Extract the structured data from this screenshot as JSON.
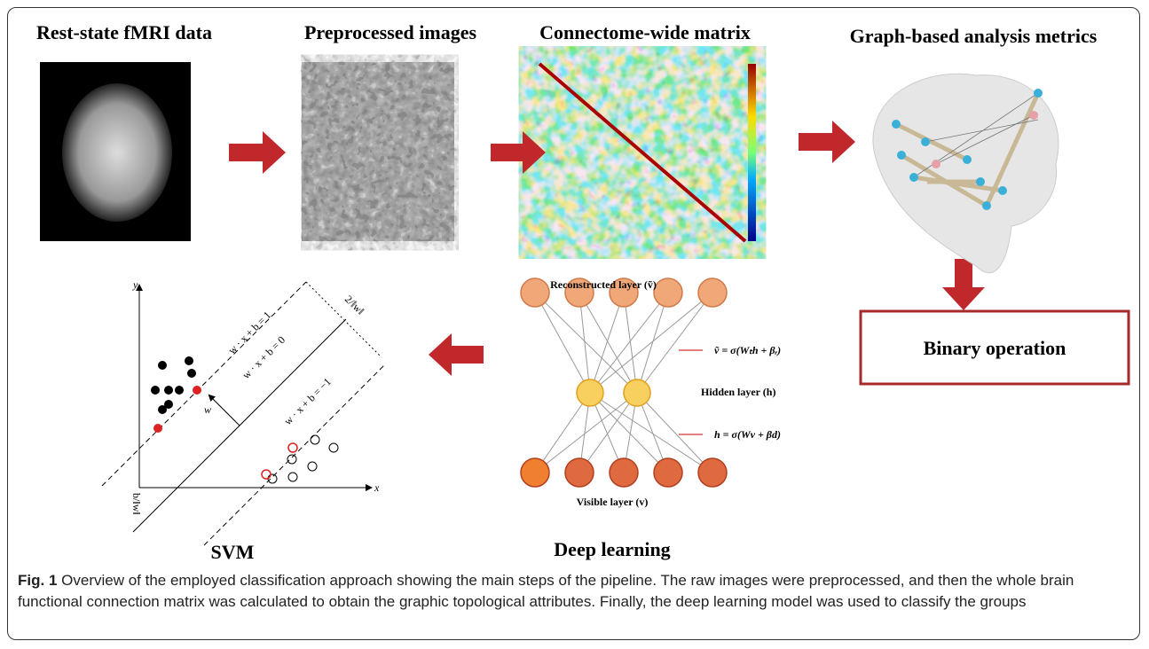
{
  "panels": {
    "rest_state": {
      "title": "Rest-state fMRI data"
    },
    "preprocessed": {
      "title": "Preprocessed images"
    },
    "matrix": {
      "title": "Connectome-wide matrix"
    },
    "graph": {
      "title": "Graph-based analysis metrics"
    },
    "binary": {
      "label": "Binary operation"
    }
  },
  "deep_learning": {
    "title": "Deep learning",
    "reconstructed_layer": "Reconstructed layer (ṽ)",
    "hidden_layer": "Hidden layer (h)",
    "visible_layer": "Visible layer (v)",
    "reconstruct_eq": "ṽ = σ(Wₜh + βᵣ)",
    "hidden_eq": "h = σ(Wv + βd)"
  },
  "svm": {
    "title": "SVM",
    "y_axis": "y",
    "x_axis": "x",
    "margin_pos": "w · x + b = 1",
    "boundary": "w · x + b = 0",
    "margin_neg": "w · x + b = −1",
    "normal": "w",
    "margin_width": "2/‖w‖",
    "offset": "b/‖w‖"
  },
  "caption": {
    "label": "Fig. 1",
    "text": "Overview of the employed classification approach showing the main steps of the pipeline. The raw images were preprocessed, and then the whole brain functional connection matrix was calculated to obtain the graphic topological attributes. Finally, the deep learning model was used to classify the groups"
  }
}
